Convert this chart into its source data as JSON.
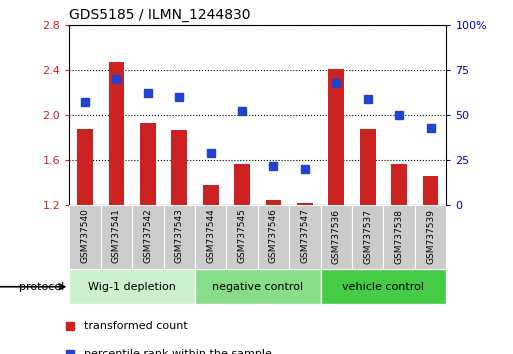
{
  "title": "GDS5185 / ILMN_1244830",
  "samples": [
    "GSM737540",
    "GSM737541",
    "GSM737542",
    "GSM737543",
    "GSM737544",
    "GSM737545",
    "GSM737546",
    "GSM737547",
    "GSM737536",
    "GSM737537",
    "GSM737538",
    "GSM737539"
  ],
  "red_values": [
    1.88,
    2.47,
    1.93,
    1.87,
    1.38,
    1.57,
    1.25,
    1.22,
    2.41,
    1.88,
    1.57,
    1.46
  ],
  "blue_values": [
    57,
    70,
    62,
    60,
    29,
    52,
    22,
    20,
    68,
    59,
    50,
    43
  ],
  "ylim_left": [
    1.2,
    2.8
  ],
  "ylim_right": [
    0,
    100
  ],
  "yticks_left": [
    1.2,
    1.6,
    2.0,
    2.4,
    2.8
  ],
  "yticks_right": [
    0,
    25,
    50,
    75,
    100
  ],
  "yticklabels_right": [
    "0",
    "25",
    "50",
    "75",
    "100%"
  ],
  "red_color": "#cc2222",
  "blue_color": "#2244cc",
  "bar_bottom": 1.2,
  "bar_width": 0.5,
  "groups": [
    {
      "label": "Wig-1 depletion",
      "start": 0,
      "end": 4,
      "color": "#ccf0cc"
    },
    {
      "label": "negative control",
      "start": 4,
      "end": 8,
      "color": "#88dd88"
    },
    {
      "label": "vehicle control",
      "start": 8,
      "end": 12,
      "color": "#44cc44"
    }
  ],
  "protocol_label": "protocol",
  "legend_red": "transformed count",
  "legend_blue": "percentile rank within the sample",
  "tick_label_color_left": "#cc2222",
  "tick_label_color_right": "#0000cc",
  "xticklabel_bg": "#cccccc",
  "marker_size": 6
}
